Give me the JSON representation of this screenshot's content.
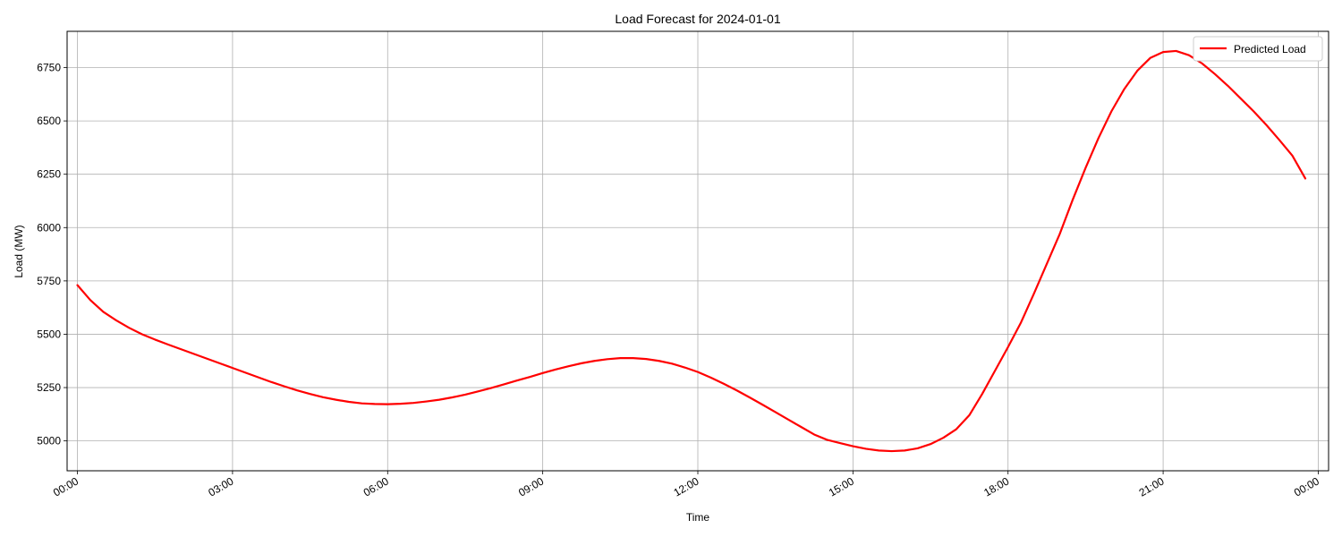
{
  "chart_data": {
    "type": "line",
    "title": "Load Forecast for 2024-01-01",
    "xlabel": "Time",
    "ylabel": "Load (MW)",
    "xlim": [
      "2023-12-31 23:48",
      "2024-01-02 00:12"
    ],
    "ylim": [
      4860,
      6920
    ],
    "x_ticks": [
      "00:00",
      "03:00",
      "06:00",
      "09:00",
      "12:00",
      "15:00",
      "18:00",
      "21:00",
      "00:00"
    ],
    "y_ticks": [
      5000,
      5250,
      5500,
      5750,
      6000,
      6250,
      6500,
      6750
    ],
    "grid": true,
    "legend_position": "top-right",
    "series": [
      {
        "name": "Predicted Load",
        "color": "#ff0000",
        "x": [
          "00:00",
          "00:15",
          "00:30",
          "00:45",
          "01:00",
          "01:15",
          "01:30",
          "01:45",
          "02:00",
          "02:15",
          "02:30",
          "02:45",
          "03:00",
          "03:15",
          "03:30",
          "03:45",
          "04:00",
          "04:15",
          "04:30",
          "04:45",
          "05:00",
          "05:15",
          "05:30",
          "05:45",
          "06:00",
          "06:15",
          "06:30",
          "06:45",
          "07:00",
          "07:15",
          "07:30",
          "07:45",
          "08:00",
          "08:15",
          "08:30",
          "08:45",
          "09:00",
          "09:15",
          "09:30",
          "09:45",
          "10:00",
          "10:15",
          "10:30",
          "10:45",
          "11:00",
          "11:15",
          "11:30",
          "11:45",
          "12:00",
          "12:15",
          "12:30",
          "12:45",
          "13:00",
          "13:15",
          "13:30",
          "13:45",
          "14:00",
          "14:15",
          "14:30",
          "14:45",
          "15:00",
          "15:15",
          "15:30",
          "15:45",
          "16:00",
          "16:15",
          "16:30",
          "16:45",
          "17:00",
          "17:15",
          "17:30",
          "17:45",
          "18:00",
          "18:15",
          "18:30",
          "18:45",
          "19:00",
          "19:15",
          "19:30",
          "19:45",
          "20:00",
          "20:15",
          "20:30",
          "20:45",
          "21:00",
          "21:15",
          "21:30",
          "21:45",
          "22:00",
          "22:15",
          "22:30",
          "22:45",
          "23:00",
          "23:15",
          "23:30",
          "23:45"
        ],
        "values": [
          5730,
          5660,
          5605,
          5565,
          5530,
          5500,
          5475,
          5452,
          5430,
          5408,
          5386,
          5364,
          5342,
          5320,
          5298,
          5276,
          5256,
          5237,
          5220,
          5205,
          5193,
          5183,
          5176,
          5173,
          5172,
          5174,
          5178,
          5185,
          5193,
          5204,
          5217,
          5232,
          5248,
          5265,
          5283,
          5300,
          5318,
          5335,
          5350,
          5364,
          5375,
          5383,
          5388,
          5388,
          5384,
          5375,
          5362,
          5344,
          5323,
          5297,
          5268,
          5237,
          5204,
          5170,
          5135,
          5100,
          5065,
          5030,
          5005,
          4990,
          4975,
          4963,
          4955,
          4952,
          4955,
          4965,
          4985,
          5015,
          5055,
          5120,
          5220,
          5330,
          5440,
          5555,
          5690,
          5830,
          5970,
          6130,
          6280,
          6420,
          6545,
          6650,
          6735,
          6795,
          6823,
          6828,
          6808,
          6770,
          6720,
          6665,
          6605,
          6545,
          6480,
          6410,
          6337,
          6230
        ]
      }
    ]
  }
}
